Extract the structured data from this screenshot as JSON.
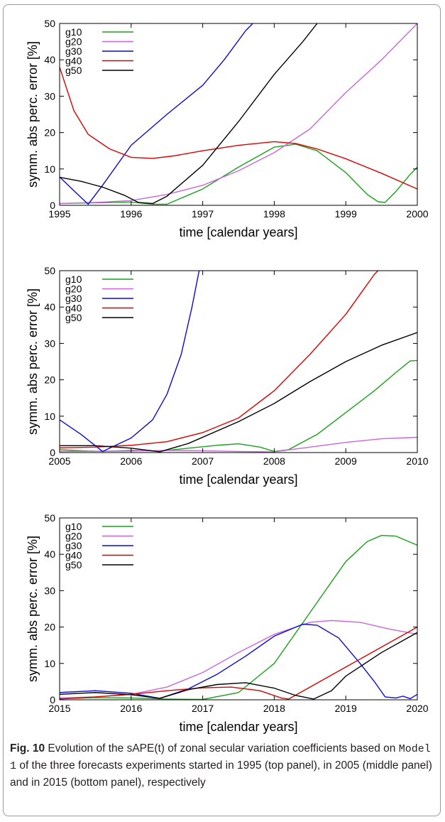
{
  "colors": {
    "g10": "#1aa11a",
    "g20": "#cc66dd",
    "g30": "#0a0ad0",
    "g40": "#dd0000",
    "g50": "#000000"
  },
  "chart_data": [
    {
      "type": "line",
      "xlabel": "time [calendar years]",
      "ylabel": "symm. abs perc. error [%]",
      "xlim": [
        1995,
        2000
      ],
      "ylim": [
        0,
        50
      ],
      "xticks": [
        "1995",
        "1996",
        "1997",
        "1998",
        "1999",
        "2000"
      ],
      "yticks": [
        "0",
        "10",
        "20",
        "30",
        "40",
        "50"
      ],
      "legend": "top-left",
      "series": [
        {
          "name": "g10",
          "color": "#1aa11a",
          "points": [
            [
              1995,
              0.5
            ],
            [
              1995.5,
              0.7
            ],
            [
              1996,
              0.9
            ],
            [
              1996.3,
              0.3
            ],
            [
              1996.5,
              0.3
            ],
            [
              1997,
              4.5
            ],
            [
              1997.5,
              10.5
            ],
            [
              1998,
              16
            ],
            [
              1998.3,
              16.8
            ],
            [
              1998.6,
              15
            ],
            [
              1999,
              9
            ],
            [
              1999.3,
              3
            ],
            [
              1999.45,
              1.0
            ],
            [
              1999.55,
              0.8
            ],
            [
              1999.7,
              3.8
            ],
            [
              1999.9,
              8.5
            ],
            [
              2000,
              10.5
            ]
          ]
        },
        {
          "name": "g20",
          "color": "#cc66dd",
          "points": [
            [
              1995,
              0.5
            ],
            [
              1995.5,
              0.8
            ],
            [
              1996,
              1.3
            ],
            [
              1996.5,
              3
            ],
            [
              1997,
              5.5
            ],
            [
              1997.5,
              9.5
            ],
            [
              1998,
              14.5
            ],
            [
              1998.5,
              21
            ],
            [
              1999,
              31
            ],
            [
              1999.5,
              40
            ],
            [
              2000,
              50
            ]
          ]
        },
        {
          "name": "g30",
          "color": "#0a0ad0",
          "points": [
            [
              1995,
              7.8
            ],
            [
              1995.2,
              4
            ],
            [
              1995.4,
              0.3
            ],
            [
              1995.6,
              5.5
            ],
            [
              1996,
              16.5
            ],
            [
              1996.5,
              25
            ],
            [
              1997,
              33
            ],
            [
              1997.3,
              40
            ],
            [
              1997.6,
              48
            ],
            [
              1997.7,
              50
            ]
          ]
        },
        {
          "name": "g40",
          "color": "#dd0000",
          "points": [
            [
              1995,
              38
            ],
            [
              1995.2,
              26
            ],
            [
              1995.4,
              19.5
            ],
            [
              1995.7,
              15.5
            ],
            [
              1996,
              13.2
            ],
            [
              1996.3,
              12.9
            ],
            [
              1996.6,
              13.6
            ],
            [
              1997,
              15
            ],
            [
              1997.5,
              16.5
            ],
            [
              1998,
              17.5
            ],
            [
              1998.3,
              17
            ],
            [
              1998.6,
              15.5
            ],
            [
              1999,
              12.8
            ],
            [
              1999.5,
              8.8
            ],
            [
              2000,
              4.5
            ]
          ]
        },
        {
          "name": "g50",
          "color": "#000000",
          "points": [
            [
              1995,
              7.7
            ],
            [
              1995.3,
              6.6
            ],
            [
              1995.6,
              5
            ],
            [
              1995.9,
              2.8
            ],
            [
              1996.1,
              0.8
            ],
            [
              1996.3,
              0.5
            ],
            [
              1996.5,
              2.5
            ],
            [
              1997,
              11
            ],
            [
              1997.5,
              23
            ],
            [
              1998,
              36
            ],
            [
              1998.4,
              45
            ],
            [
              1998.6,
              50
            ]
          ]
        }
      ]
    },
    {
      "type": "line",
      "xlabel": "time [calendar years]",
      "ylabel": "symm. abs perc. error [%]",
      "xlim": [
        2005,
        2010
      ],
      "ylim": [
        0,
        50
      ],
      "xticks": [
        "2005",
        "2006",
        "2007",
        "2008",
        "2009",
        "2010"
      ],
      "yticks": [
        "0",
        "10",
        "20",
        "30",
        "40",
        "50"
      ],
      "legend": "top-left",
      "series": [
        {
          "name": "g10",
          "color": "#1aa11a",
          "points": [
            [
              2005,
              0.8
            ],
            [
              2005.3,
              0.5
            ],
            [
              2005.6,
              0.3
            ],
            [
              2006,
              0.6
            ],
            [
              2006.4,
              0.4
            ],
            [
              2006.8,
              1.2
            ],
            [
              2007.2,
              2
            ],
            [
              2007.5,
              2.4
            ],
            [
              2007.8,
              1.5
            ],
            [
              2008,
              0.3
            ],
            [
              2008.2,
              0.8
            ],
            [
              2008.6,
              5
            ],
            [
              2009,
              11
            ],
            [
              2009.4,
              17
            ],
            [
              2009.7,
              22
            ],
            [
              2009.9,
              25.2
            ],
            [
              2010,
              25.3
            ]
          ]
        },
        {
          "name": "g20",
          "color": "#cc66dd",
          "points": [
            [
              2005,
              0.3
            ],
            [
              2006,
              0.4
            ],
            [
              2006.5,
              0.6
            ],
            [
              2007,
              0.5
            ],
            [
              2007.5,
              0.3
            ],
            [
              2008,
              0.2
            ],
            [
              2008.5,
              1.5
            ],
            [
              2009,
              2.8
            ],
            [
              2009.5,
              3.8
            ],
            [
              2010,
              4.2
            ]
          ]
        },
        {
          "name": "g30",
          "color": "#0a0ad0",
          "points": [
            [
              2005,
              9
            ],
            [
              2005.3,
              5
            ],
            [
              2005.6,
              0.3
            ],
            [
              2006,
              4
            ],
            [
              2006.3,
              9
            ],
            [
              2006.5,
              16
            ],
            [
              2006.7,
              27
            ],
            [
              2006.85,
              40
            ],
            [
              2006.95,
              50
            ]
          ]
        },
        {
          "name": "g40",
          "color": "#dd0000",
          "points": [
            [
              2005,
              1.3
            ],
            [
              2005.5,
              1.5
            ],
            [
              2006,
              2
            ],
            [
              2006.5,
              3
            ],
            [
              2007,
              5.5
            ],
            [
              2007.5,
              9.5
            ],
            [
              2008,
              17
            ],
            [
              2008.5,
              27
            ],
            [
              2009,
              38
            ],
            [
              2009.4,
              49
            ],
            [
              2009.45,
              50
            ]
          ]
        },
        {
          "name": "g50",
          "color": "#000000",
          "points": [
            [
              2005,
              1.9
            ],
            [
              2005.5,
              1.9
            ],
            [
              2006,
              1.2
            ],
            [
              2006.4,
              0.2
            ],
            [
              2006.8,
              2.5
            ],
            [
              2007.5,
              8.5
            ],
            [
              2008,
              13.5
            ],
            [
              2008.5,
              19.5
            ],
            [
              2009,
              25
            ],
            [
              2009.5,
              29.5
            ],
            [
              2010,
              33
            ]
          ]
        }
      ]
    },
    {
      "type": "line",
      "xlabel": "time [calendar years]",
      "ylabel": "symm. abs perc. error [%]",
      "xlim": [
        2015,
        2020
      ],
      "ylim": [
        0,
        50
      ],
      "xticks": [
        "2015",
        "2016",
        "2017",
        "2018",
        "2019",
        "2020"
      ],
      "yticks": [
        "0",
        "10",
        "20",
        "30",
        "40",
        "50"
      ],
      "legend": "top-left",
      "series": [
        {
          "name": "g10",
          "color": "#1aa11a",
          "points": [
            [
              2015,
              0.3
            ],
            [
              2015.5,
              0.6
            ],
            [
              2016,
              0.5
            ],
            [
              2016.5,
              0.2
            ],
            [
              2017,
              0.1
            ],
            [
              2017.5,
              2
            ],
            [
              2018,
              10
            ],
            [
              2018.5,
              24
            ],
            [
              2019,
              38
            ],
            [
              2019.3,
              43.5
            ],
            [
              2019.5,
              45.2
            ],
            [
              2019.7,
              45
            ],
            [
              2020,
              42.5
            ]
          ]
        },
        {
          "name": "g20",
          "color": "#cc66dd",
          "points": [
            [
              2015,
              0.5
            ],
            [
              2015.5,
              0.8
            ],
            [
              2016,
              1.5
            ],
            [
              2016.5,
              3.5
            ],
            [
              2017,
              7.5
            ],
            [
              2017.5,
              13
            ],
            [
              2018,
              18
            ],
            [
              2018.5,
              21.3
            ],
            [
              2018.8,
              21.8
            ],
            [
              2019.2,
              21.3
            ],
            [
              2019.6,
              19.5
            ],
            [
              2020,
              18
            ]
          ]
        },
        {
          "name": "g30",
          "color": "#0a0ad0",
          "points": [
            [
              2015,
              2
            ],
            [
              2015.5,
              2.5
            ],
            [
              2016,
              1.8
            ],
            [
              2016.4,
              0.4
            ],
            [
              2016.8,
              3
            ],
            [
              2017.2,
              7
            ],
            [
              2017.6,
              12
            ],
            [
              2018,
              17.5
            ],
            [
              2018.4,
              20.8
            ],
            [
              2018.6,
              20.5
            ],
            [
              2018.9,
              17
            ],
            [
              2019.2,
              10
            ],
            [
              2019.4,
              5
            ],
            [
              2019.55,
              0.8
            ],
            [
              2019.7,
              0.5
            ],
            [
              2019.8,
              1.0
            ],
            [
              2019.9,
              0.3
            ],
            [
              2020,
              1.5
            ]
          ]
        },
        {
          "name": "g40",
          "color": "#dd0000",
          "points": [
            [
              2015,
              0.2
            ],
            [
              2015.5,
              0.8
            ],
            [
              2016,
              1.5
            ],
            [
              2016.5,
              2.5
            ],
            [
              2017,
              3.3
            ],
            [
              2017.4,
              3.5
            ],
            [
              2017.8,
              2.5
            ],
            [
              2018.1,
              0.5
            ],
            [
              2018.2,
              0.2
            ],
            [
              2018.5,
              3.5
            ],
            [
              2019,
              9
            ],
            [
              2019.5,
              14.5
            ],
            [
              2020,
              20
            ]
          ]
        },
        {
          "name": "g50",
          "color": "#000000",
          "points": [
            [
              2015,
              1.5
            ],
            [
              2015.5,
              2
            ],
            [
              2016,
              1.4
            ],
            [
              2016.4,
              0.4
            ],
            [
              2016.8,
              2.8
            ],
            [
              2017.2,
              4.2
            ],
            [
              2017.6,
              4.7
            ],
            [
              2018,
              3.2
            ],
            [
              2018.3,
              1.2
            ],
            [
              2018.55,
              0.2
            ],
            [
              2018.8,
              2.5
            ],
            [
              2019,
              6.5
            ],
            [
              2019.5,
              13
            ],
            [
              2020,
              18.5
            ]
          ]
        }
      ]
    }
  ],
  "caption": {
    "fig_label": "Fig. 10",
    "text_before_model": " Evolution of the sAPE(t) of zonal secular variation coefficients based on ",
    "model": "Model 1",
    "text_after_model": " of the three forecasts experiments started in 1995 (top panel), in 2005 (middle panel) and in 2015 (bottom panel), respectively"
  }
}
